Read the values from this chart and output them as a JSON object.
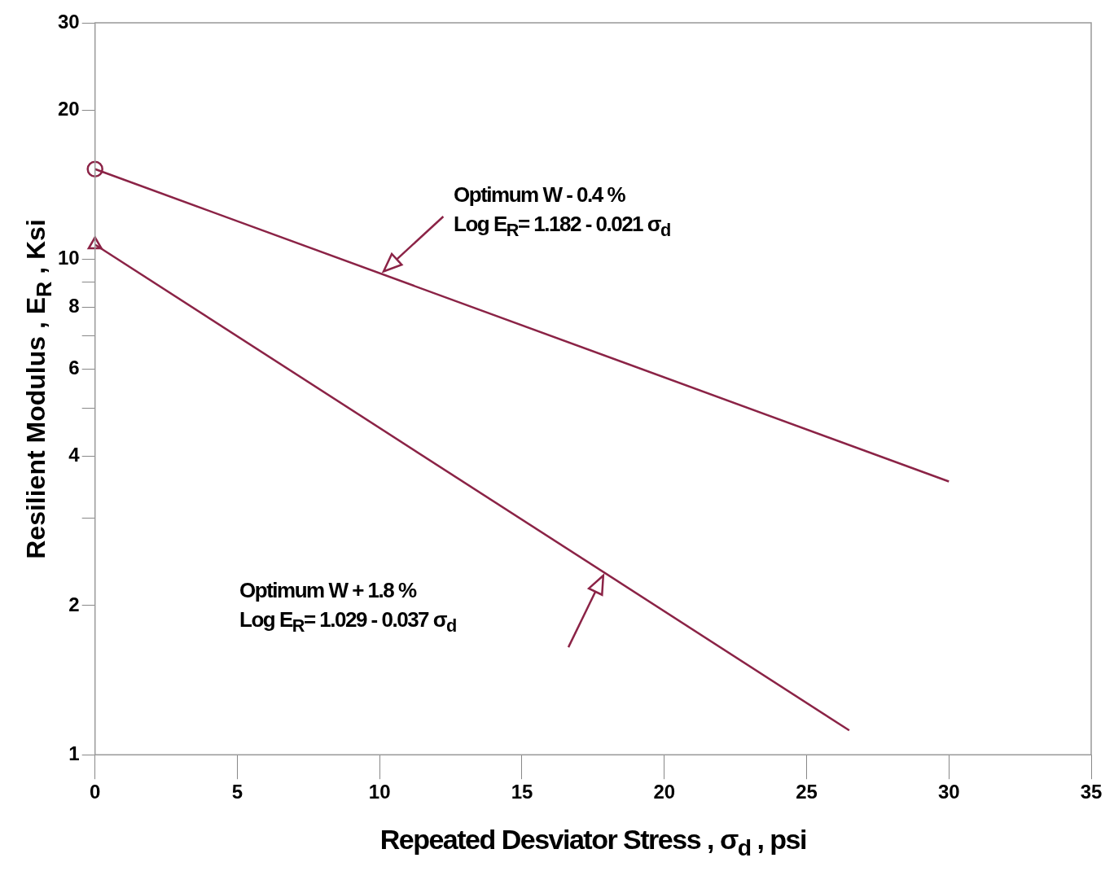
{
  "chart_data": {
    "type": "line",
    "xlabel": "Repeated Desviator Stress ,  σ$_{d}$ , psi",
    "ylabel": "Resilient Modulus , E$_{R}$ , Ksi",
    "log": "y",
    "xlim": [
      0,
      35
    ],
    "xticks": [
      0,
      5,
      10,
      15,
      20,
      25,
      30,
      35
    ],
    "ylim": [
      1,
      30
    ],
    "yticks": [
      1,
      2,
      {
        "value": 3,
        "label": null
      },
      4,
      {
        "value": 5,
        "label": null
      },
      6,
      {
        "value": 7,
        "label": null
      },
      8,
      {
        "value": 9,
        "label": null
      },
      10,
      20,
      30
    ],
    "grid": false,
    "legend": false,
    "marker": "none",
    "series": [
      {
        "color": "#8b2346",
        "x": [
          0,
          30
        ],
        "values": [
          15.2,
          3.56
        ]
      },
      {
        "color": "#8b2346",
        "x": [
          0,
          26.5
        ],
        "values": [
          10.7,
          1.12
        ]
      },
      {
        "type": "scatter",
        "marker": "circle",
        "color": "#8b2346",
        "x": [
          0
        ],
        "values": [
          15.2
        ]
      },
      {
        "type": "scatter",
        "marker": "triangle",
        "color": "#8b2346",
        "x": [
          0
        ],
        "values": [
          10.7
        ]
      }
    ],
    "annotations": [
      "Optimum W - 0.4 %\nLog E$_{R}$= 1.182 - 0.021 σ$_{d}$",
      "Optimum W + 1.8 %\nLog E$_{R}$= 1.029 - 0.037 σ$_{d}$"
    ]
  }
}
